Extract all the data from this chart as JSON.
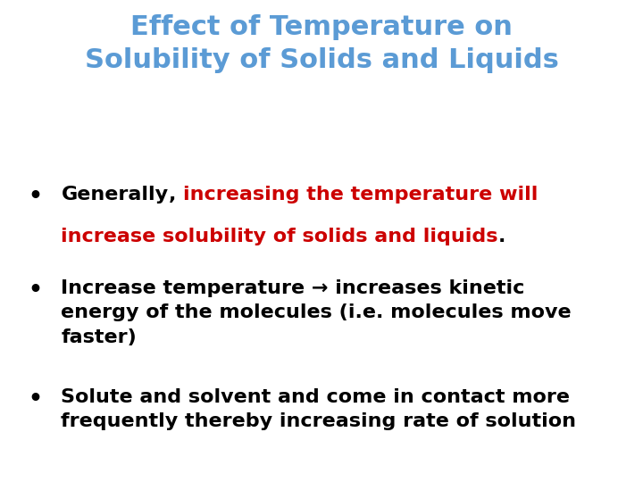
{
  "title_line1": "Effect of Temperature on",
  "title_line2": "Solubility of Solids and Liquids",
  "title_color": "#5B9BD5",
  "title_fontsize": 22,
  "background_color": "#FFFFFF",
  "bullet_color": "#000000",
  "bullet_fontsize": 16,
  "bullet2_text": "Increase temperature → increases kinetic\nenergy of the molecules (i.e. molecules move\nfaster)",
  "bullet2_color": "#000000",
  "bullet3_text": "Solute and solvent and come in contact more\nfrequently thereby increasing rate of solution",
  "bullet3_color": "#000000",
  "bullet_marker": "•",
  "figsize": [
    7.2,
    5.4
  ],
  "dpi": 100
}
